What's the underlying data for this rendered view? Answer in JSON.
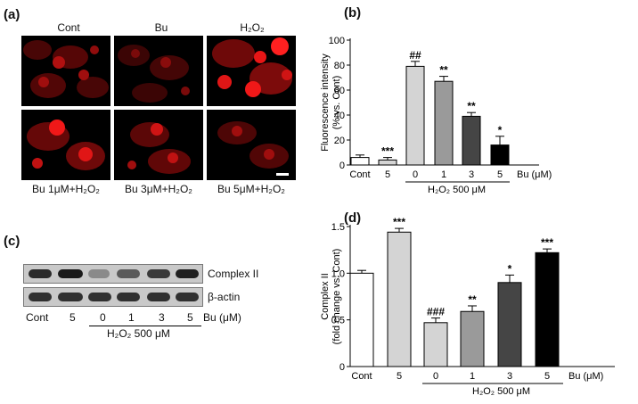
{
  "panel_labels": {
    "a": "(a)",
    "b": "(b)",
    "c": "(c)",
    "d": "(d)"
  },
  "micrographs": {
    "headers": [
      "Cont",
      "Bu",
      "H₂O₂"
    ],
    "captions": [
      "Bu 1μM+H₂O₂",
      "Bu 3μM+H₂O₂",
      "Bu 5μM+H₂O₂"
    ],
    "colors": {
      "background": "#000000",
      "stain": "#e01010"
    }
  },
  "western": {
    "labels": {
      "complex": "Complex II",
      "actin": "β-actin"
    },
    "lanes": [
      "Cont",
      "5",
      "0",
      "1",
      "3",
      "5"
    ],
    "bu_unit": "Bu (μM)",
    "h2o2_label": "H₂O₂ 500 μM"
  },
  "chart_data": [
    {
      "type": "bar",
      "panel": "b",
      "ylabel": [
        "Fluorescence intensity",
        "(% vs. Cont)"
      ],
      "ylim": [
        0,
        100
      ],
      "yticks": [
        0,
        20,
        40,
        60,
        80,
        100
      ],
      "categories": [
        "Cont",
        "5",
        "0",
        "1",
        "3",
        "5"
      ],
      "values": [
        6,
        4,
        79,
        67,
        39,
        16
      ],
      "errors": [
        2,
        2,
        4,
        4,
        3,
        7
      ],
      "significance": [
        "",
        "***",
        "##",
        "**",
        "**",
        "*"
      ],
      "colors": [
        "#ffffff",
        "#d4d4d4",
        "#d4d4d4",
        "#9a9a9a",
        "#454545",
        "#000000"
      ],
      "bu_unit": "Bu (μM)",
      "h2o2_label": "H₂O₂ 500 μM"
    },
    {
      "type": "bar",
      "panel": "d",
      "ylabel": [
        "Complex II",
        "(fold change vs. Cont)"
      ],
      "ylim": [
        0,
        1.5
      ],
      "yticks": [
        0,
        0.5,
        1.0,
        1.5
      ],
      "ytick_labels": [
        "0",
        "0.5",
        "1.0",
        "1.5"
      ],
      "categories": [
        "Cont",
        "5",
        "0",
        "1",
        "3",
        "5"
      ],
      "values": [
        1.0,
        1.44,
        0.47,
        0.59,
        0.9,
        1.22
      ],
      "errors": [
        0.03,
        0.04,
        0.05,
        0.06,
        0.08,
        0.04
      ],
      "significance": [
        "",
        "***",
        "###",
        "**",
        "*",
        "***"
      ],
      "colors": [
        "#ffffff",
        "#d4d4d4",
        "#d4d4d4",
        "#9a9a9a",
        "#454545",
        "#000000"
      ],
      "bu_unit": "Bu (μM)",
      "h2o2_label": "H₂O₂ 500 μM"
    }
  ]
}
